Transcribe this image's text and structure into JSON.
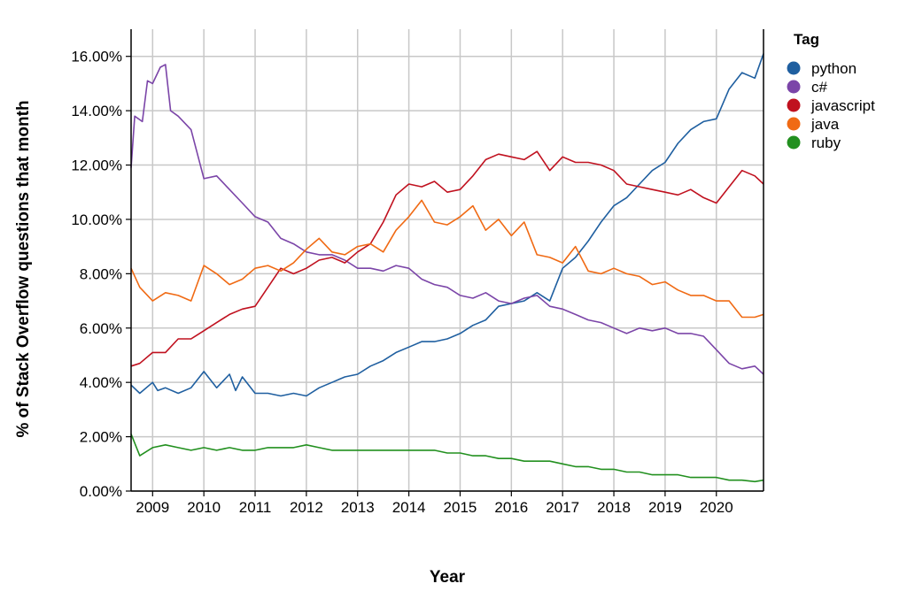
{
  "chart_data": {
    "type": "line",
    "xlabel": "Year",
    "ylabel": "% of Stack Overflow questions that month",
    "xlim": [
      2008.58,
      2020.92
    ],
    "ylim": [
      0,
      17
    ],
    "x_ticks": [
      2009,
      2010,
      2011,
      2012,
      2013,
      2014,
      2015,
      2016,
      2017,
      2018,
      2019,
      2020
    ],
    "x_tick_labels": [
      "2009",
      "2010",
      "2011",
      "2012",
      "2013",
      "2014",
      "2015",
      "2016",
      "2017",
      "2018",
      "2019",
      "2020"
    ],
    "y_ticks": [
      0,
      2,
      4,
      6,
      8,
      10,
      12,
      14,
      16
    ],
    "y_tick_labels": [
      "0.00%",
      "2.00%",
      "4.00%",
      "6.00%",
      "8.00%",
      "10.00%",
      "12.00%",
      "14.00%",
      "16.00%"
    ],
    "grid": true,
    "legend": {
      "title": "Tag",
      "placement": "right"
    },
    "series": [
      {
        "name": "python",
        "color": "#1f5fa0",
        "x": [
          2008.58,
          2008.75,
          2009.0,
          2009.1,
          2009.25,
          2009.5,
          2009.75,
          2010.0,
          2010.25,
          2010.5,
          2010.62,
          2010.75,
          2011.0,
          2011.25,
          2011.5,
          2011.75,
          2012.0,
          2012.25,
          2012.5,
          2012.75,
          2013.0,
          2013.25,
          2013.5,
          2013.75,
          2014.0,
          2014.25,
          2014.5,
          2014.75,
          2015.0,
          2015.25,
          2015.5,
          2015.75,
          2016.0,
          2016.25,
          2016.5,
          2016.75,
          2017.0,
          2017.25,
          2017.5,
          2017.75,
          2018.0,
          2018.25,
          2018.5,
          2018.75,
          2019.0,
          2019.25,
          2019.5,
          2019.75,
          2020.0,
          2020.25,
          2020.5,
          2020.75,
          2020.92
        ],
        "values": [
          3.9,
          3.6,
          4.0,
          3.7,
          3.8,
          3.6,
          3.8,
          4.4,
          3.8,
          4.3,
          3.7,
          4.2,
          3.6,
          3.6,
          3.5,
          3.6,
          3.5,
          3.8,
          4.0,
          4.2,
          4.3,
          4.6,
          4.8,
          5.1,
          5.3,
          5.5,
          5.5,
          5.6,
          5.8,
          6.1,
          6.3,
          6.8,
          6.9,
          7.0,
          7.3,
          7.0,
          8.2,
          8.6,
          9.2,
          9.9,
          10.5,
          10.8,
          11.3,
          11.8,
          12.1,
          12.8,
          13.3,
          13.6,
          13.7,
          14.8,
          15.4,
          15.2,
          16.1
        ]
      },
      {
        "name": "c#",
        "color": "#7b45a8",
        "x": [
          2008.58,
          2008.65,
          2008.8,
          2008.9,
          2009.0,
          2009.15,
          2009.25,
          2009.35,
          2009.5,
          2009.75,
          2010.0,
          2010.25,
          2010.5,
          2010.75,
          2011.0,
          2011.25,
          2011.5,
          2011.75,
          2012.0,
          2012.25,
          2012.5,
          2012.75,
          2013.0,
          2013.25,
          2013.5,
          2013.75,
          2014.0,
          2014.25,
          2014.5,
          2014.75,
          2015.0,
          2015.25,
          2015.5,
          2015.75,
          2016.0,
          2016.25,
          2016.5,
          2016.75,
          2017.0,
          2017.25,
          2017.5,
          2017.75,
          2018.0,
          2018.25,
          2018.5,
          2018.75,
          2019.0,
          2019.25,
          2019.5,
          2019.75,
          2020.0,
          2020.25,
          2020.5,
          2020.75,
          2020.92
        ],
        "values": [
          11.9,
          13.8,
          13.6,
          15.1,
          15.0,
          15.6,
          15.7,
          14.0,
          13.8,
          13.3,
          11.5,
          11.6,
          11.1,
          10.6,
          10.1,
          9.9,
          9.3,
          9.1,
          8.8,
          8.7,
          8.7,
          8.5,
          8.2,
          8.2,
          8.1,
          8.3,
          8.2,
          7.8,
          7.6,
          7.5,
          7.2,
          7.1,
          7.3,
          7.0,
          6.9,
          7.1,
          7.2,
          6.8,
          6.7,
          6.5,
          6.3,
          6.2,
          6.0,
          5.8,
          6.0,
          5.9,
          6.0,
          5.8,
          5.8,
          5.7,
          5.2,
          4.7,
          4.5,
          4.6,
          4.3
        ]
      },
      {
        "name": "javascript",
        "color": "#c0111f",
        "x": [
          2008.58,
          2008.75,
          2009.0,
          2009.25,
          2009.5,
          2009.75,
          2010.0,
          2010.25,
          2010.5,
          2010.75,
          2011.0,
          2011.25,
          2011.5,
          2011.75,
          2012.0,
          2012.25,
          2012.5,
          2012.75,
          2013.0,
          2013.25,
          2013.5,
          2013.75,
          2014.0,
          2014.25,
          2014.5,
          2014.75,
          2015.0,
          2015.25,
          2015.5,
          2015.75,
          2016.0,
          2016.25,
          2016.5,
          2016.75,
          2017.0,
          2017.25,
          2017.5,
          2017.75,
          2018.0,
          2018.25,
          2018.5,
          2018.75,
          2019.0,
          2019.25,
          2019.5,
          2019.75,
          2020.0,
          2020.25,
          2020.5,
          2020.75,
          2020.92
        ],
        "values": [
          4.6,
          4.7,
          5.1,
          5.1,
          5.6,
          5.6,
          5.9,
          6.2,
          6.5,
          6.7,
          6.8,
          7.5,
          8.2,
          8.0,
          8.2,
          8.5,
          8.6,
          8.4,
          8.8,
          9.1,
          9.9,
          10.9,
          11.3,
          11.2,
          11.4,
          11.0,
          11.1,
          11.6,
          12.2,
          12.4,
          12.3,
          12.2,
          12.5,
          11.8,
          12.3,
          12.1,
          12.1,
          12.0,
          11.8,
          11.3,
          11.2,
          11.1,
          11.0,
          10.9,
          11.1,
          10.8,
          10.6,
          11.2,
          11.8,
          11.6,
          11.3
        ]
      },
      {
        "name": "java",
        "color": "#f06a14",
        "x": [
          2008.58,
          2008.75,
          2009.0,
          2009.25,
          2009.5,
          2009.75,
          2010.0,
          2010.25,
          2010.5,
          2010.75,
          2011.0,
          2011.25,
          2011.5,
          2011.75,
          2012.0,
          2012.25,
          2012.5,
          2012.75,
          2013.0,
          2013.25,
          2013.5,
          2013.75,
          2014.0,
          2014.25,
          2014.5,
          2014.75,
          2015.0,
          2015.25,
          2015.5,
          2015.75,
          2016.0,
          2016.25,
          2016.5,
          2016.75,
          2017.0,
          2017.25,
          2017.5,
          2017.75,
          2018.0,
          2018.25,
          2018.5,
          2018.75,
          2019.0,
          2019.25,
          2019.5,
          2019.75,
          2020.0,
          2020.25,
          2020.5,
          2020.75,
          2020.92
        ],
        "values": [
          8.2,
          7.5,
          7.0,
          7.3,
          7.2,
          7.0,
          8.3,
          8.0,
          7.6,
          7.8,
          8.2,
          8.3,
          8.1,
          8.4,
          8.9,
          9.3,
          8.8,
          8.7,
          9.0,
          9.1,
          8.8,
          9.6,
          10.1,
          10.7,
          9.9,
          9.8,
          10.1,
          10.5,
          9.6,
          10.0,
          9.4,
          9.9,
          8.7,
          8.6,
          8.4,
          9.0,
          8.1,
          8.0,
          8.2,
          8.0,
          7.9,
          7.6,
          7.7,
          7.4,
          7.2,
          7.2,
          7.0,
          7.0,
          6.4,
          6.4,
          6.5
        ]
      },
      {
        "name": "ruby",
        "color": "#22901f",
        "x": [
          2008.58,
          2008.75,
          2009.0,
          2009.25,
          2009.5,
          2009.75,
          2010.0,
          2010.25,
          2010.5,
          2010.75,
          2011.0,
          2011.25,
          2011.5,
          2011.75,
          2012.0,
          2012.25,
          2012.5,
          2012.75,
          2013.0,
          2013.25,
          2013.5,
          2013.75,
          2014.0,
          2014.25,
          2014.5,
          2014.75,
          2015.0,
          2015.25,
          2015.5,
          2015.75,
          2016.0,
          2016.25,
          2016.5,
          2016.75,
          2017.0,
          2017.25,
          2017.5,
          2017.75,
          2018.0,
          2018.25,
          2018.5,
          2018.75,
          2019.0,
          2019.25,
          2019.5,
          2019.75,
          2020.0,
          2020.25,
          2020.5,
          2020.75,
          2020.92
        ],
        "values": [
          2.1,
          1.3,
          1.6,
          1.7,
          1.6,
          1.5,
          1.6,
          1.5,
          1.6,
          1.5,
          1.5,
          1.6,
          1.6,
          1.6,
          1.7,
          1.6,
          1.5,
          1.5,
          1.5,
          1.5,
          1.5,
          1.5,
          1.5,
          1.5,
          1.5,
          1.4,
          1.4,
          1.3,
          1.3,
          1.2,
          1.2,
          1.1,
          1.1,
          1.1,
          1.0,
          0.9,
          0.9,
          0.8,
          0.8,
          0.7,
          0.7,
          0.6,
          0.6,
          0.6,
          0.5,
          0.5,
          0.5,
          0.4,
          0.4,
          0.35,
          0.4
        ]
      }
    ]
  }
}
